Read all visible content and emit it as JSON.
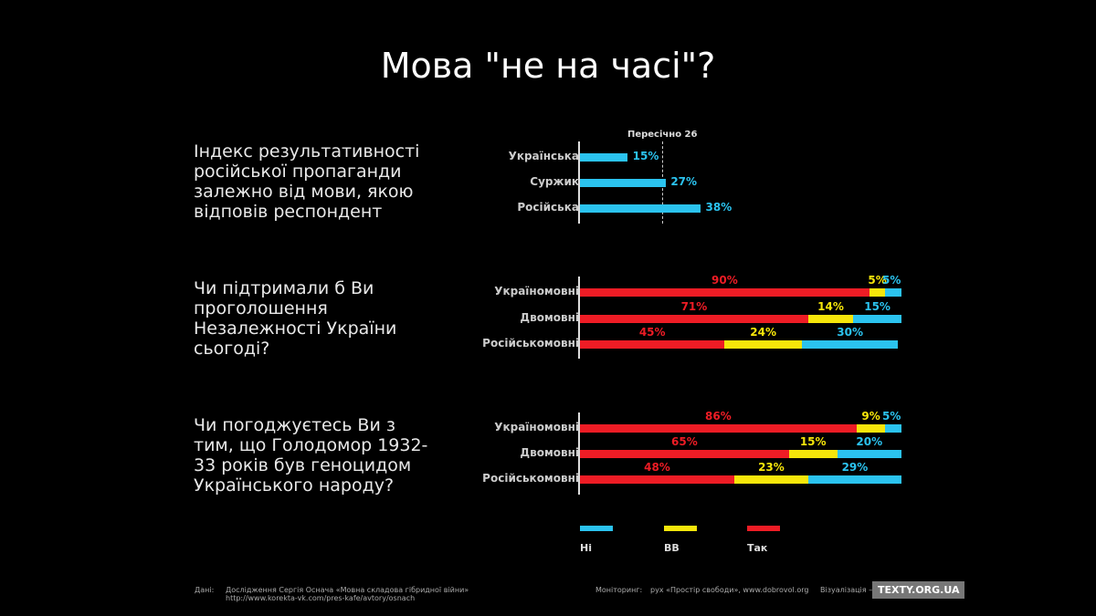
{
  "title": "Мова \"не на часі\"?",
  "colors": {
    "ni": "#2bc3ef",
    "vv": "#f6e60a",
    "tak": "#ee1c25"
  },
  "chart_data": [
    {
      "type": "bar",
      "title": "Індекс результативності російської пропаганди залежно від мови, якою відповів респондент",
      "categories": [
        "Українська",
        "Суржик",
        "Російська"
      ],
      "values": [
        15,
        27,
        38
      ],
      "labels": [
        "15%",
        "27%",
        "38%"
      ],
      "average": 26,
      "average_label": "Пересічно 26"
    },
    {
      "type": "bar",
      "stacked": true,
      "title": "Чи підтримали б Ви проголошення Незалежності України сьогоді?",
      "categories": [
        "Україномовні",
        "Двомовні",
        "Російськомовні"
      ],
      "series": [
        {
          "name": "Так",
          "values": [
            90,
            71,
            45
          ]
        },
        {
          "name": "ВВ",
          "values": [
            5,
            14,
            24
          ]
        },
        {
          "name": "Ні",
          "values": [
            5,
            15,
            30
          ]
        }
      ]
    },
    {
      "type": "bar",
      "stacked": true,
      "title": "Чи погоджуєтесь Ви з тим, що Голодомор 1932-33 років був геноцидом Українського народу?",
      "categories": [
        "Україномовні",
        "Двомовні",
        "Російськомовні"
      ],
      "series": [
        {
          "name": "Так",
          "values": [
            86,
            65,
            48
          ]
        },
        {
          "name": "ВВ",
          "values": [
            9,
            15,
            23
          ]
        },
        {
          "name": "Ні",
          "values": [
            5,
            20,
            29
          ]
        }
      ]
    }
  ],
  "legend": [
    {
      "name": "Ні",
      "key": "ni"
    },
    {
      "name": "ВВ",
      "key": "vv"
    },
    {
      "name": "Так",
      "key": "tak"
    }
  ],
  "footer": {
    "data_label": "Дані:",
    "data_text": "Дослідження Сергія Оснача «Мовна складова гібридної війни»",
    "data_url": "http://www.korekta-vk.com/pres-kafe/avtory/osnach",
    "monitoring_label": "Моніторинг:",
    "monitoring_text": "рух «Простір свободи», www.dobrovol.org",
    "viz_label": "Візуалізація —",
    "logo": "TEXTY.ORG.UA"
  }
}
